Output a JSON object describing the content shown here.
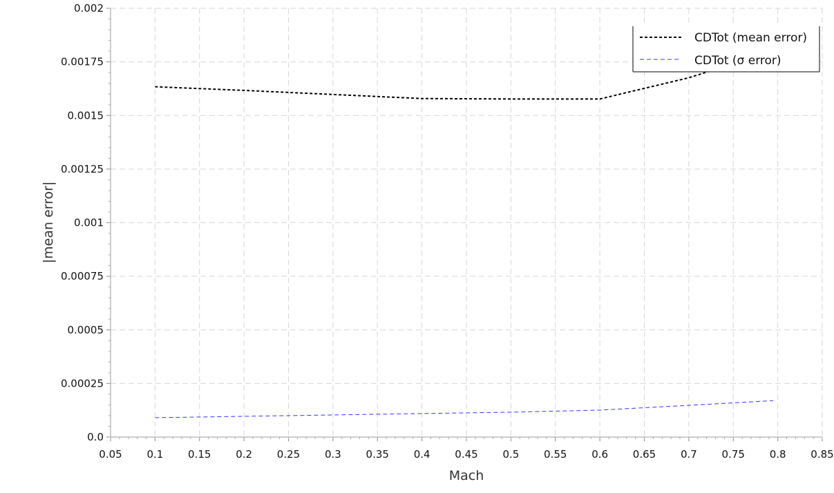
{
  "chart_data": {
    "type": "line",
    "xlabel": "Mach",
    "ylabel": "|mean error|",
    "xlim": [
      0.05,
      0.85
    ],
    "ylim": [
      0,
      0.002
    ],
    "x_ticks": [
      "0.05",
      "0.1",
      "0.15",
      "0.2",
      "0.25",
      "0.3",
      "0.35",
      "0.4",
      "0.45",
      "0.5",
      "0.55",
      "0.6",
      "0.65",
      "0.7",
      "0.75",
      "0.8",
      "0.85"
    ],
    "y_ticks": [
      "0.0",
      "0.00025",
      "0.0005",
      "0.00075",
      "0.001",
      "0.00125",
      "0.0015",
      "0.00175",
      "0.002"
    ],
    "grid": true,
    "legend_position": "top-right",
    "series": [
      {
        "name": "CDTot (mean error)",
        "color": "#000000",
        "dash": "dotted",
        "x": [
          0.1,
          0.2,
          0.3,
          0.4,
          0.5,
          0.6,
          0.7,
          0.795
        ],
        "y": [
          0.001634,
          0.001617,
          0.001598,
          0.001579,
          0.001577,
          0.001577,
          0.001676,
          0.0018
        ]
      },
      {
        "name": "CDTot (σ error)",
        "color": "#3333ff",
        "dash": "dashed",
        "x": [
          0.1,
          0.2,
          0.3,
          0.4,
          0.5,
          0.6,
          0.7,
          0.795
        ],
        "y": [
          9.04e-05,
          9.68e-05,
          0.0001032,
          0.0001097,
          0.0001161,
          0.0001258,
          0.000148,
          0.00017
        ]
      }
    ]
  }
}
